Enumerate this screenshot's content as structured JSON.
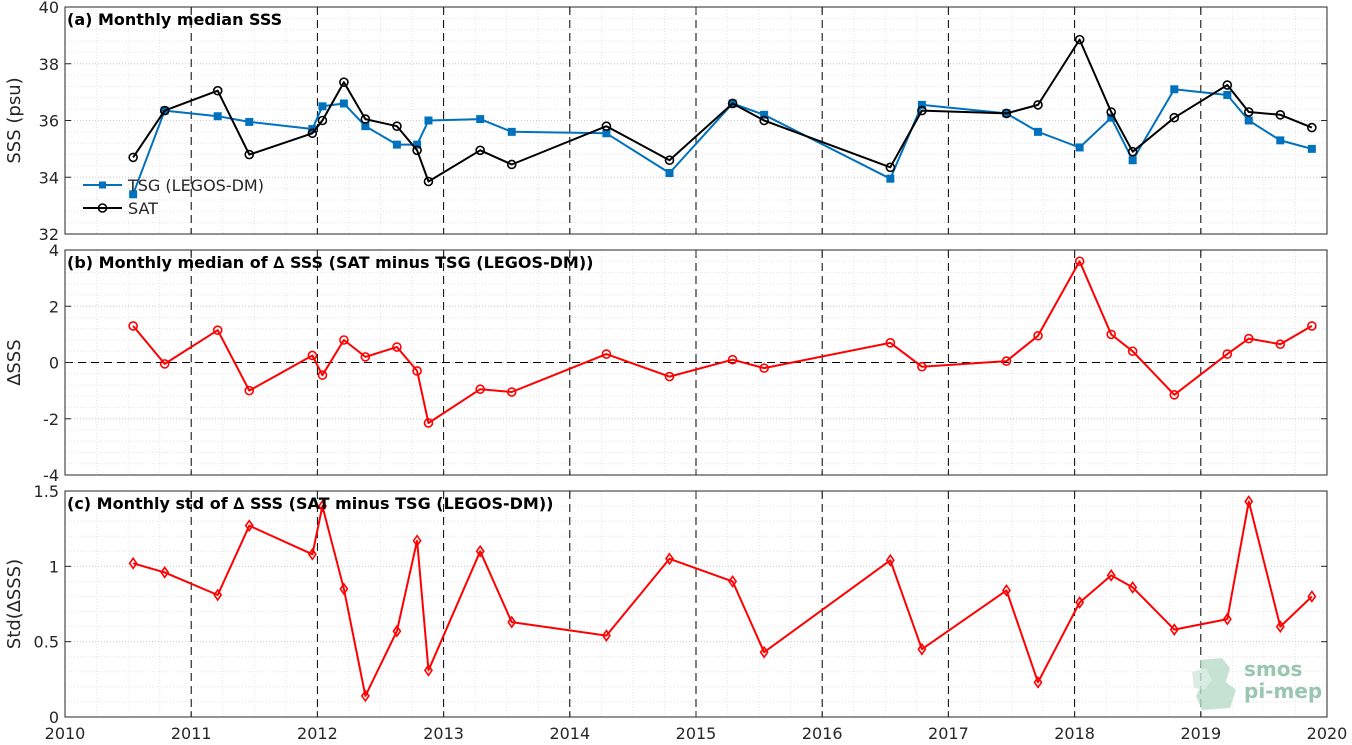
{
  "figure": {
    "xticks": [
      "2010",
      "2011",
      "2012",
      "2013",
      "2014",
      "2015",
      "2016",
      "2017",
      "2018",
      "2019",
      "2020"
    ],
    "colors": {
      "tsg": "#0072BD",
      "sat": "#000000",
      "delta": "#FF0000"
    },
    "logo": {
      "line1": "smos",
      "line2": "pi-mep"
    }
  },
  "chart_data": [
    {
      "type": "line",
      "title": "(a) Monthly median SSS",
      "ylabel": "SSS (psu)",
      "xlim": [
        2010.0,
        2020.0
      ],
      "ylim": [
        32,
        40
      ],
      "yticks": [
        "32",
        "34",
        "36",
        "38",
        "40"
      ],
      "grid": true,
      "legend_position": "lower-left",
      "series": [
        {
          "name": "TSG (LEGOS-DM)",
          "x": [
            2010.54,
            2010.79,
            2011.21,
            2011.46,
            2011.96,
            2012.04,
            2012.21,
            2012.38,
            2012.63,
            2012.79,
            2012.88,
            2013.29,
            2013.54,
            2014.29,
            2014.79,
            2015.29,
            2015.54,
            2016.54,
            2016.79,
            2017.46,
            2017.71,
            2018.04,
            2018.29,
            2018.46,
            2018.79,
            2019.21,
            2019.38,
            2019.63,
            2019.88
          ],
          "y": [
            33.4,
            36.35,
            36.15,
            35.95,
            35.7,
            36.5,
            36.6,
            35.8,
            35.15,
            35.15,
            36.0,
            36.05,
            35.6,
            35.55,
            34.15,
            36.6,
            36.2,
            33.95,
            36.55,
            36.25,
            35.6,
            35.05,
            36.1,
            34.6,
            37.1,
            36.9,
            36.0,
            35.3,
            35.0
          ]
        },
        {
          "name": "SAT",
          "x": [
            2010.54,
            2010.79,
            2011.21,
            2011.46,
            2011.96,
            2012.04,
            2012.21,
            2012.38,
            2012.63,
            2012.79,
            2012.88,
            2013.29,
            2013.54,
            2014.29,
            2014.79,
            2015.29,
            2015.54,
            2016.54,
            2016.79,
            2017.46,
            2017.71,
            2018.04,
            2018.29,
            2018.46,
            2018.79,
            2019.21,
            2019.38,
            2019.63,
            2019.88
          ],
          "y": [
            34.7,
            36.35,
            37.05,
            34.8,
            35.55,
            36.0,
            37.35,
            36.05,
            35.8,
            34.95,
            33.85,
            34.95,
            34.45,
            35.8,
            34.6,
            36.6,
            36.0,
            34.35,
            36.35,
            36.25,
            36.55,
            38.85,
            36.3,
            34.9,
            36.1,
            37.25,
            36.3,
            36.2,
            35.75
          ]
        }
      ]
    },
    {
      "type": "line",
      "title": "(b) Monthly median of ∆ SSS (SAT minus TSG (LEGOS-DM))",
      "ylabel": "∆SSS",
      "xlim": [
        2010.0,
        2020.0
      ],
      "ylim": [
        -4,
        4
      ],
      "yticks": [
        "-4",
        "-2",
        "0",
        "2",
        "4"
      ],
      "grid": true,
      "zero_line": true,
      "series": [
        {
          "name": "",
          "x": [
            2010.54,
            2010.79,
            2011.21,
            2011.46,
            2011.96,
            2012.04,
            2012.21,
            2012.38,
            2012.63,
            2012.79,
            2012.88,
            2013.29,
            2013.54,
            2014.29,
            2014.79,
            2015.29,
            2015.54,
            2016.54,
            2016.79,
            2017.46,
            2017.71,
            2018.04,
            2018.29,
            2018.46,
            2018.79,
            2019.21,
            2019.38,
            2019.63,
            2019.88
          ],
          "y": [
            1.3,
            -0.05,
            1.15,
            -1.0,
            0.25,
            -0.45,
            0.8,
            0.2,
            0.55,
            -0.3,
            -2.15,
            -0.95,
            -1.05,
            0.3,
            -0.5,
            0.1,
            -0.2,
            0.7,
            -0.15,
            0.05,
            0.95,
            3.6,
            1.0,
            0.4,
            -1.15,
            0.3,
            0.85,
            0.65,
            1.3
          ]
        }
      ]
    },
    {
      "type": "line",
      "title": "(c) Monthly std of ∆ SSS (SAT minus TSG (LEGOS-DM))",
      "ylabel": "Std(∆SSS)",
      "xlim": [
        2010.0,
        2020.0
      ],
      "ylim": [
        0,
        1.5
      ],
      "yticks": [
        "0",
        "0.5",
        "1",
        "1.5"
      ],
      "grid": true,
      "series": [
        {
          "name": "",
          "x": [
            2010.54,
            2010.79,
            2011.21,
            2011.46,
            2011.96,
            2012.04,
            2012.21,
            2012.38,
            2012.63,
            2012.79,
            2012.88,
            2013.29,
            2013.54,
            2014.29,
            2014.79,
            2015.29,
            2015.54,
            2016.54,
            2016.79,
            2017.46,
            2017.71,
            2018.04,
            2018.29,
            2018.46,
            2018.79,
            2019.21,
            2019.38,
            2019.63,
            2019.88
          ],
          "y": [
            1.02,
            0.96,
            0.81,
            1.27,
            1.08,
            1.4,
            0.85,
            0.14,
            0.57,
            1.17,
            0.31,
            1.1,
            0.63,
            0.54,
            1.05,
            0.9,
            0.43,
            1.04,
            0.45,
            0.84,
            0.23,
            0.76,
            0.94,
            0.86,
            0.58,
            0.65,
            1.43,
            0.6,
            0.8
          ]
        }
      ]
    }
  ]
}
